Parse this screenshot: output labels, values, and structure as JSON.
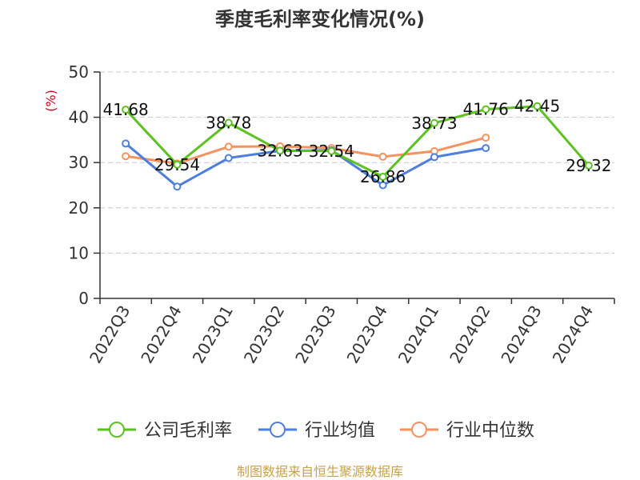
{
  "chart_data": {
    "type": "line",
    "title": "季度毛利率变化情况(%)",
    "ylabel": "(%)",
    "xlabel": "",
    "ylim": [
      0,
      50
    ],
    "yticks": [
      0,
      10,
      20,
      30,
      40,
      50
    ],
    "grid": true,
    "legend_position": "bottom",
    "categories": [
      "2022Q3",
      "2022Q4",
      "2023Q1",
      "2023Q2",
      "2023Q3",
      "2023Q4",
      "2024Q1",
      "2024Q2",
      "2024Q3",
      "2024Q4"
    ],
    "series": [
      {
        "name": "公司毛利率",
        "color": "#5cc121",
        "values": [
          41.68,
          29.54,
          38.78,
          32.63,
          32.54,
          26.86,
          38.73,
          41.76,
          42.45,
          29.32
        ],
        "labels": [
          "41.68",
          "29.54",
          "38.78",
          "32.63",
          "32.54",
          "26.86",
          "38.73",
          "41.76",
          "42.45",
          "29.32"
        ]
      },
      {
        "name": "行业均值",
        "color": "#4f7fdc",
        "values": [
          34.2,
          24.7,
          31.0,
          32.6,
          32.7,
          25.0,
          31.2,
          33.2,
          null,
          null
        ]
      },
      {
        "name": "行业中位数",
        "color": "#f5925f",
        "values": [
          31.4,
          29.8,
          33.5,
          33.6,
          33.2,
          31.3,
          32.5,
          35.5,
          null,
          null
        ]
      }
    ],
    "source": "制图数据来自恒生聚源数据库"
  }
}
